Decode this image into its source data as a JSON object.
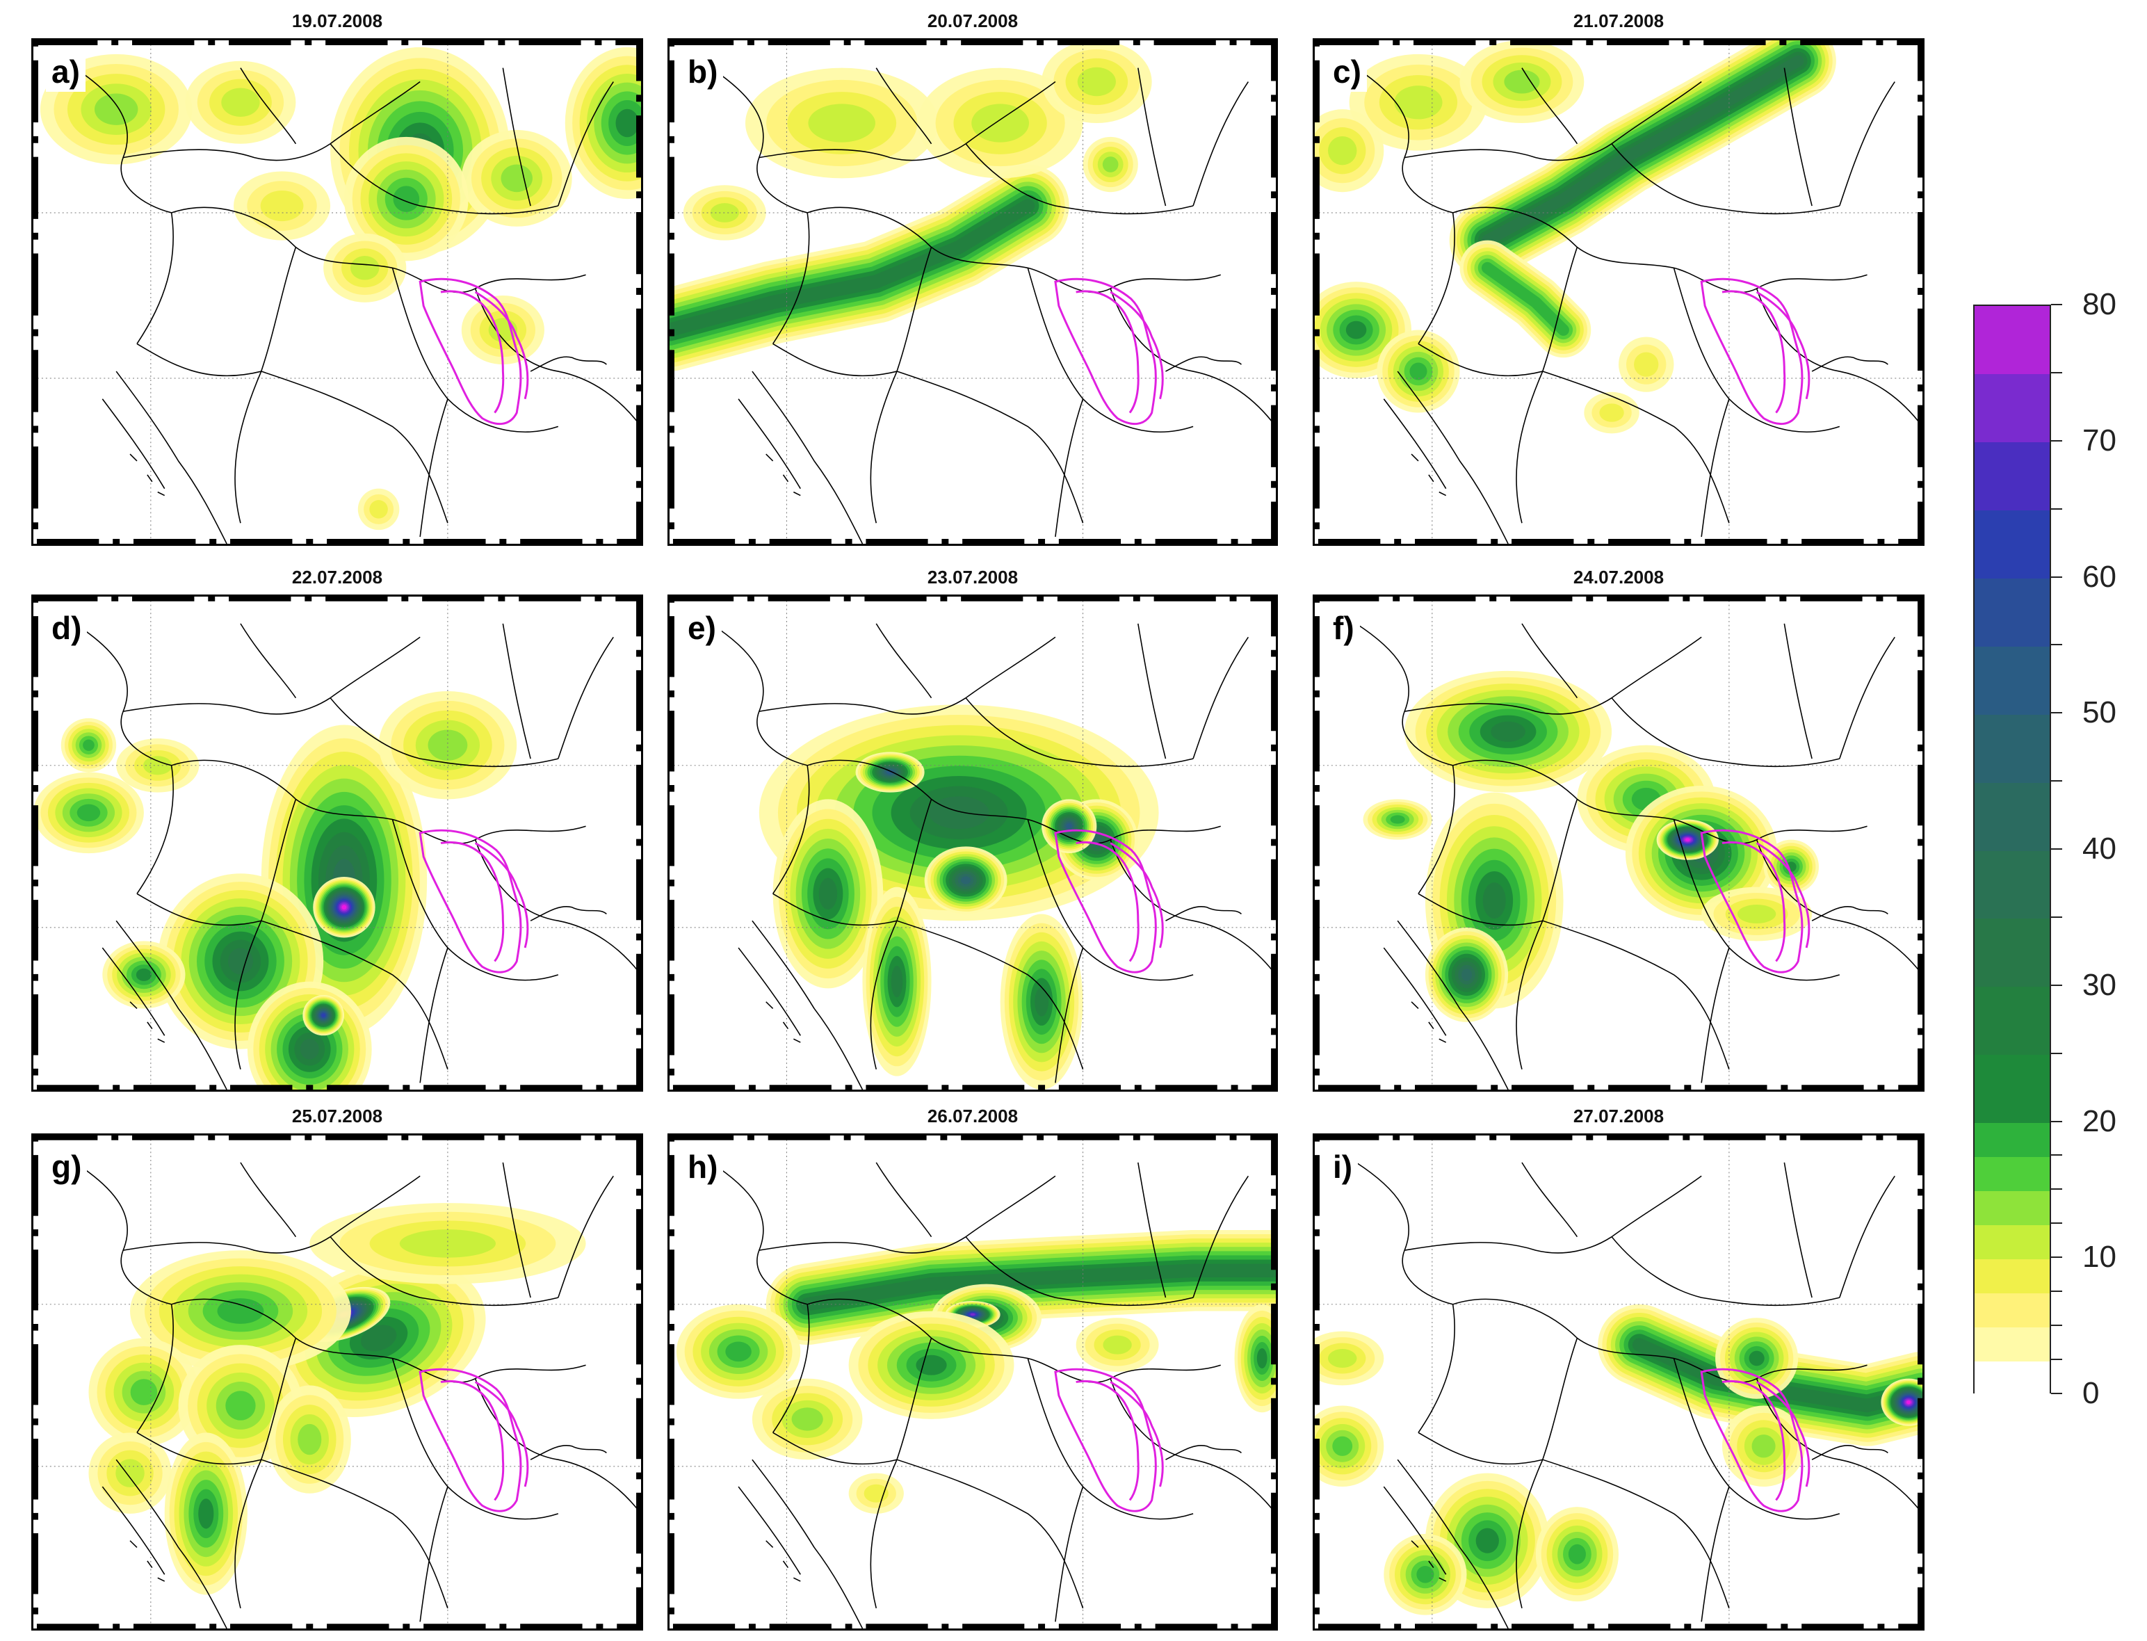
{
  "panels": [
    {
      "letter": "a)",
      "date": "19.07.2008"
    },
    {
      "letter": "b)",
      "date": "20.07.2008"
    },
    {
      "letter": "c)",
      "date": "21.07.2008"
    },
    {
      "letter": "d)",
      "date": "22.07.2008"
    },
    {
      "letter": "e)",
      "date": "23.07.2008"
    },
    {
      "letter": "f)",
      "date": "24.07.2008"
    },
    {
      "letter": "g)",
      "date": "25.07.2008"
    },
    {
      "letter": "h)",
      "date": "26.07.2008"
    },
    {
      "letter": "i)",
      "date": "27.07.2008"
    }
  ],
  "colorbar": {
    "min": 0,
    "max": 80,
    "tick_labels": [
      "80",
      "70",
      "60",
      "50",
      "40",
      "30",
      "20",
      "10",
      "0"
    ],
    "levels": [
      0,
      2.5,
      5,
      7.5,
      10,
      12.5,
      15,
      17.5,
      20,
      25,
      30,
      35,
      40,
      45,
      50,
      55,
      60,
      65,
      70,
      75,
      80
    ],
    "colors": [
      "#ffffff",
      "#fffaa8",
      "#fff27a",
      "#f0f04a",
      "#c6ef3a",
      "#8ee33a",
      "#4fcf3a",
      "#2eb23c",
      "#1e8a3a",
      "#23803f",
      "#287848",
      "#2a7254",
      "#2b6b60",
      "#2b6470",
      "#2a5c84",
      "#2a4e98",
      "#2b3fb0",
      "#4a2ec0",
      "#7a2bcf",
      "#b025d8",
      "#f016e6"
    ]
  },
  "colors": {
    "basin_outline": "#e020e0",
    "borders": "#000000"
  }
}
